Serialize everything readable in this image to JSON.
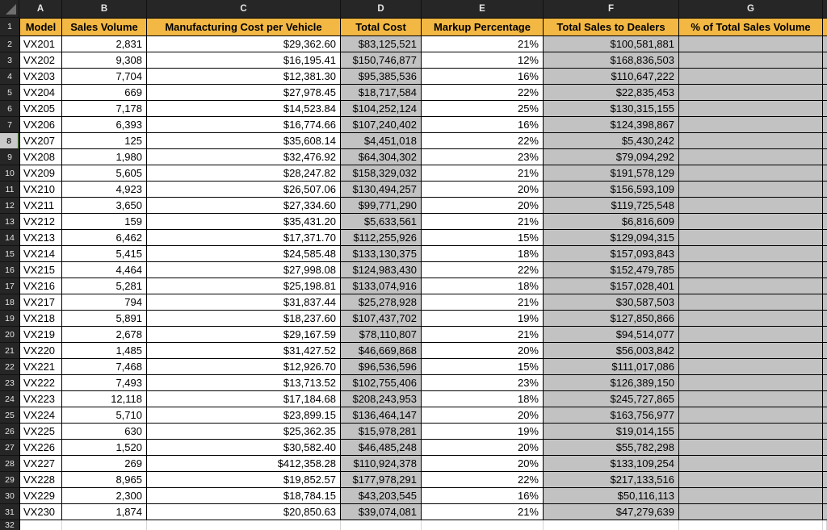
{
  "grid": {
    "column_letters": [
      "A",
      "B",
      "C",
      "D",
      "E",
      "F",
      "G"
    ],
    "row_numbers": [
      "1",
      "2",
      "3",
      "4",
      "5",
      "6",
      "7",
      "8",
      "9",
      "10",
      "11",
      "12",
      "13",
      "14",
      "15",
      "16",
      "17",
      "18",
      "19",
      "20",
      "21",
      "22",
      "23",
      "24",
      "25",
      "26",
      "27",
      "28",
      "29",
      "30",
      "31",
      "32"
    ],
    "active_row": "8",
    "gray_filled_columns": [
      "D",
      "F",
      "G"
    ]
  },
  "table": {
    "headers": [
      "Model",
      "Sales Volume",
      "Manufacturing Cost per Vehicle",
      "Total Cost",
      "Markup Percentage",
      "Total Sales to Dealers",
      "% of Total Sales Volume"
    ],
    "rows": [
      [
        "VX201",
        "2,831",
        "$29,362.60",
        "$83,125,521",
        "21%",
        "$100,581,881",
        ""
      ],
      [
        "VX202",
        "9,308",
        "$16,195.41",
        "$150,746,877",
        "12%",
        "$168,836,503",
        ""
      ],
      [
        "VX203",
        "7,704",
        "$12,381.30",
        "$95,385,536",
        "16%",
        "$110,647,222",
        ""
      ],
      [
        "VX204",
        "669",
        "$27,978.45",
        "$18,717,584",
        "22%",
        "$22,835,453",
        ""
      ],
      [
        "VX205",
        "7,178",
        "$14,523.84",
        "$104,252,124",
        "25%",
        "$130,315,155",
        ""
      ],
      [
        "VX206",
        "6,393",
        "$16,774.66",
        "$107,240,402",
        "16%",
        "$124,398,867",
        ""
      ],
      [
        "VX207",
        "125",
        "$35,608.14",
        "$4,451,018",
        "22%",
        "$5,430,242",
        ""
      ],
      [
        "VX208",
        "1,980",
        "$32,476.92",
        "$64,304,302",
        "23%",
        "$79,094,292",
        ""
      ],
      [
        "VX209",
        "5,605",
        "$28,247.82",
        "$158,329,032",
        "21%",
        "$191,578,129",
        ""
      ],
      [
        "VX210",
        "4,923",
        "$26,507.06",
        "$130,494,257",
        "20%",
        "$156,593,109",
        ""
      ],
      [
        "VX211",
        "3,650",
        "$27,334.60",
        "$99,771,290",
        "20%",
        "$119,725,548",
        ""
      ],
      [
        "VX212",
        "159",
        "$35,431.20",
        "$5,633,561",
        "21%",
        "$6,816,609",
        ""
      ],
      [
        "VX213",
        "6,462",
        "$17,371.70",
        "$112,255,926",
        "15%",
        "$129,094,315",
        ""
      ],
      [
        "VX214",
        "5,415",
        "$24,585.48",
        "$133,130,375",
        "18%",
        "$157,093,843",
        ""
      ],
      [
        "VX215",
        "4,464",
        "$27,998.08",
        "$124,983,430",
        "22%",
        "$152,479,785",
        ""
      ],
      [
        "VX216",
        "5,281",
        "$25,198.81",
        "$133,074,916",
        "18%",
        "$157,028,401",
        ""
      ],
      [
        "VX217",
        "794",
        "$31,837.44",
        "$25,278,928",
        "21%",
        "$30,587,503",
        ""
      ],
      [
        "VX218",
        "5,891",
        "$18,237.60",
        "$107,437,702",
        "19%",
        "$127,850,866",
        ""
      ],
      [
        "VX219",
        "2,678",
        "$29,167.59",
        "$78,110,807",
        "21%",
        "$94,514,077",
        ""
      ],
      [
        "VX220",
        "1,485",
        "$31,427.52",
        "$46,669,868",
        "20%",
        "$56,003,842",
        ""
      ],
      [
        "VX221",
        "7,468",
        "$12,926.70",
        "$96,536,596",
        "15%",
        "$111,017,086",
        ""
      ],
      [
        "VX222",
        "7,493",
        "$13,713.52",
        "$102,755,406",
        "23%",
        "$126,389,150",
        ""
      ],
      [
        "VX223",
        "12,118",
        "$17,184.68",
        "$208,243,953",
        "18%",
        "$245,727,865",
        ""
      ],
      [
        "VX224",
        "5,710",
        "$23,899.15",
        "$136,464,147",
        "20%",
        "$163,756,977",
        ""
      ],
      [
        "VX225",
        "630",
        "$25,362.35",
        "$15,978,281",
        "19%",
        "$19,014,155",
        ""
      ],
      [
        "VX226",
        "1,520",
        "$30,582.40",
        "$46,485,248",
        "20%",
        "$55,782,298",
        ""
      ],
      [
        "VX227",
        "269",
        "$412,358.28",
        "$110,924,378",
        "20%",
        "$133,109,254",
        ""
      ],
      [
        "VX228",
        "8,965",
        "$19,852.57",
        "$177,978,291",
        "22%",
        "$217,133,516",
        ""
      ],
      [
        "VX229",
        "2,300",
        "$18,784.15",
        "$43,203,545",
        "16%",
        "$50,116,113",
        ""
      ],
      [
        "VX230",
        "1,874",
        "$20,850.63",
        "$39,074,081",
        "21%",
        "$47,279,639",
        ""
      ]
    ]
  },
  "colors": {
    "header_fill": "#F3B843",
    "gray_fill": "#C2C2C2",
    "frame_bg": "#262626",
    "active_row_header_fill": "#C9C9C9",
    "selection_accent": "#375623"
  }
}
